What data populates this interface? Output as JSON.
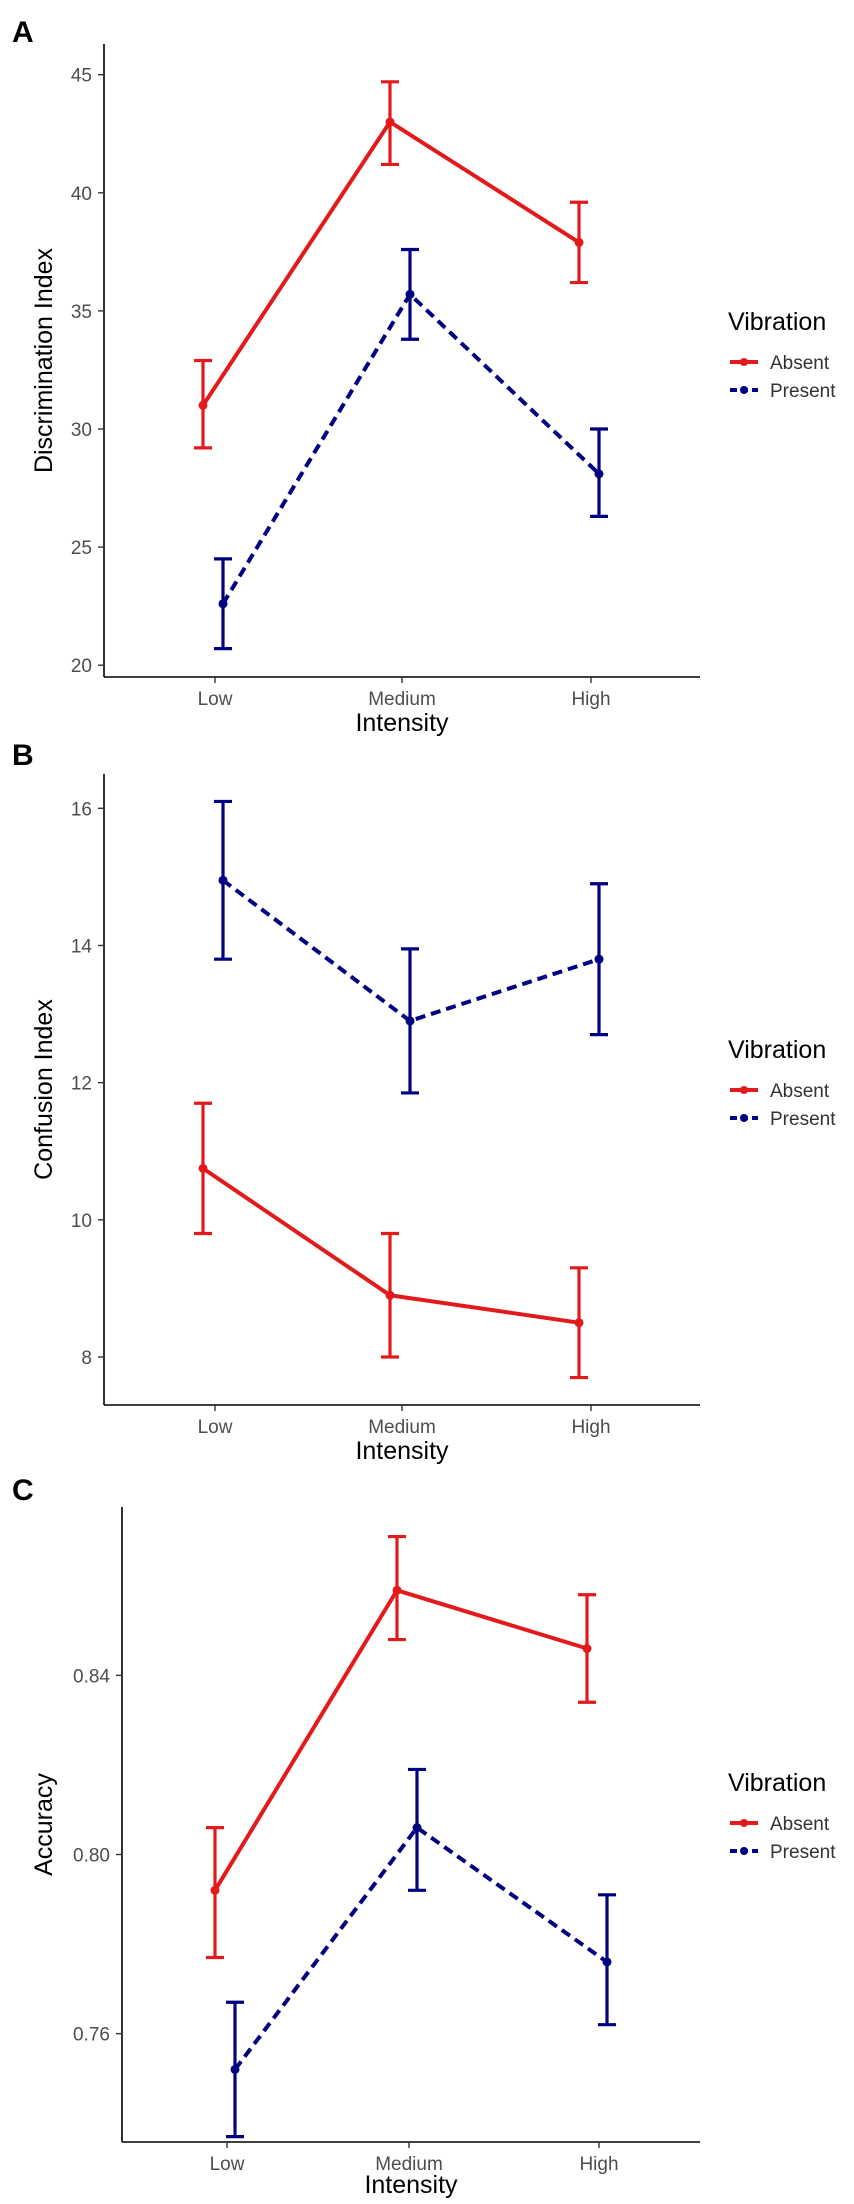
{
  "chart_data": [
    {
      "panel": "A",
      "type": "line",
      "categories": [
        "Low",
        "Medium",
        "High"
      ],
      "xlabel": "Intensity",
      "ylabel": "Discrimination Index",
      "ylim": [
        19.5,
        46.3
      ],
      "yticks": [
        20,
        25,
        30,
        35,
        40,
        45
      ],
      "legend": {
        "title": "Vibration",
        "position": "right"
      },
      "series": [
        {
          "name": "Absent",
          "color": "#e31a1c",
          "linestyle": "solid",
          "values": [
            31.0,
            43.0,
            37.9
          ],
          "error_low": [
            29.2,
            41.2,
            36.2
          ],
          "error_high": [
            32.9,
            44.7,
            39.6
          ]
        },
        {
          "name": "Present",
          "color": "#000080",
          "linestyle": "dashed",
          "values": [
            22.6,
            35.7,
            28.1
          ],
          "error_low": [
            20.7,
            33.8,
            26.3
          ],
          "error_high": [
            24.5,
            37.6,
            30.0
          ]
        }
      ]
    },
    {
      "panel": "B",
      "type": "line",
      "categories": [
        "Low",
        "Medium",
        "High"
      ],
      "xlabel": "Intensity",
      "ylabel": "Confusion Index",
      "ylim": [
        7.3,
        16.5
      ],
      "yticks": [
        8,
        10,
        12,
        14,
        16
      ],
      "legend": {
        "title": "Vibration",
        "position": "right"
      },
      "series": [
        {
          "name": "Absent",
          "color": "#e31a1c",
          "linestyle": "solid",
          "values": [
            10.75,
            8.9,
            8.5
          ],
          "error_low": [
            9.8,
            8.0,
            7.7
          ],
          "error_high": [
            11.7,
            9.8,
            9.3
          ]
        },
        {
          "name": "Present",
          "color": "#000080",
          "linestyle": "dashed",
          "values": [
            14.95,
            12.9,
            13.8
          ],
          "error_low": [
            13.8,
            11.85,
            12.7
          ],
          "error_high": [
            16.1,
            13.95,
            14.9
          ]
        }
      ]
    },
    {
      "panel": "C",
      "type": "line",
      "categories": [
        "Low",
        "Medium",
        "High"
      ],
      "xlabel": "Intensity",
      "ylabel": "Accuracy",
      "ylim": [
        0.7358,
        0.8776
      ],
      "yticks": [
        0.76,
        0.8,
        0.84
      ],
      "ytick_labels": [
        "0.76",
        "0.80",
        "0.84"
      ],
      "legend": {
        "title": "Vibration",
        "position": "right"
      },
      "series": [
        {
          "name": "Absent",
          "color": "#e31a1c",
          "linestyle": "solid",
          "values": [
            0.792,
            0.859,
            0.846
          ],
          "error_low": [
            0.777,
            0.848,
            0.834
          ],
          "error_high": [
            0.806,
            0.871,
            0.858
          ]
        },
        {
          "name": "Present",
          "color": "#000080",
          "linestyle": "dashed",
          "values": [
            0.752,
            0.806,
            0.776
          ],
          "error_low": [
            0.737,
            0.792,
            0.762
          ],
          "error_high": [
            0.767,
            0.819,
            0.791
          ]
        }
      ]
    }
  ]
}
